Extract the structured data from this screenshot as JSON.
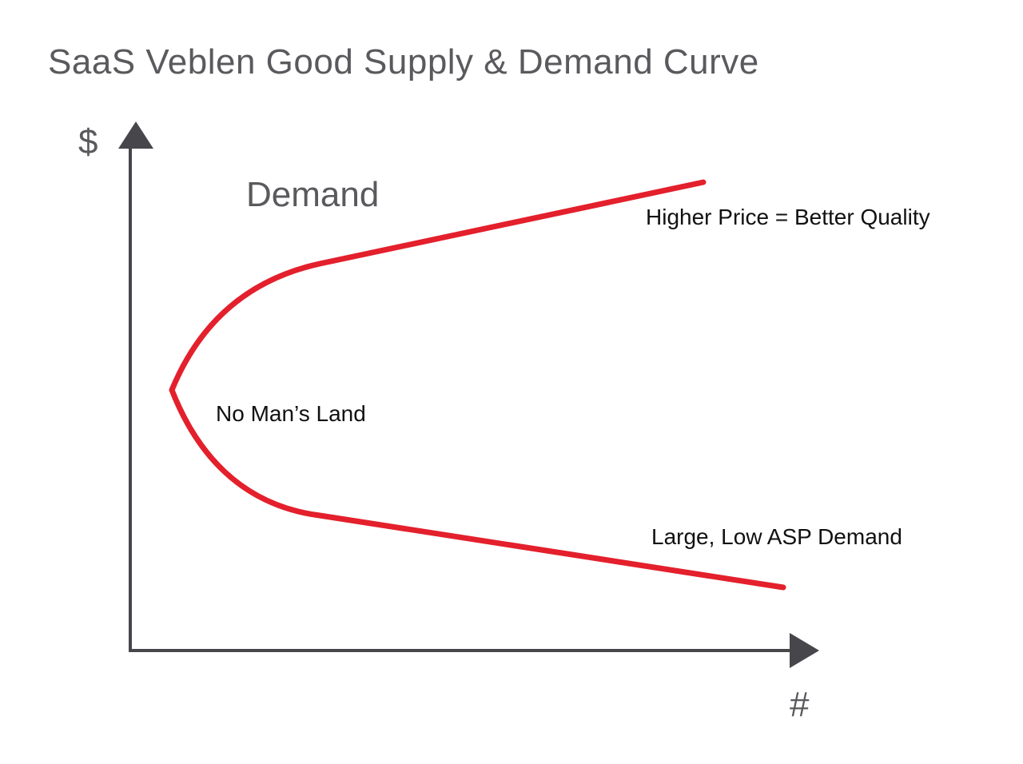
{
  "title": "SaaS Veblen Good Supply & Demand Curve",
  "axes": {
    "y_label": "$",
    "x_label": "#"
  },
  "curve": {
    "label": "Demand"
  },
  "annotations": [
    "Higher Price = Better Quality",
    "No Man’s Land",
    "Large, Low ASP Demand"
  ]
}
